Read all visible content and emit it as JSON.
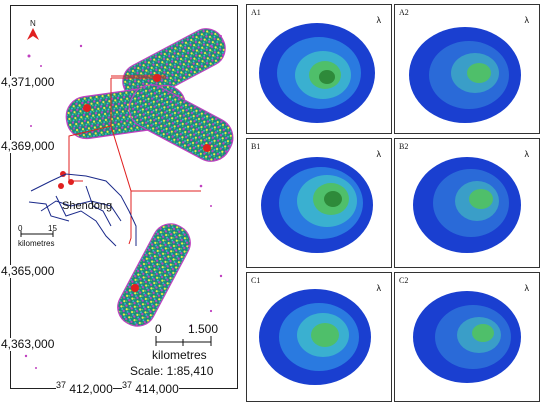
{
  "map": {
    "y_labels": [
      "4,371,000",
      "4,369,000",
      "4,365,000",
      "4,363,000"
    ],
    "x_labels": [
      {
        "prefix": "37",
        "value": "412,000"
      },
      {
        "prefix": "37",
        "value": "414,000"
      }
    ],
    "town": "Shendong",
    "inset_scale": {
      "start": "0",
      "end": "15",
      "unit": "kilometres"
    },
    "scale": {
      "start": "0",
      "end": "1.500",
      "unit": "kilometres",
      "ratio": "Scale: 1:85,410"
    },
    "colors": {
      "red_marker": "#e02020",
      "frame": "#222222",
      "road": "#1b2a8a"
    }
  },
  "panels": [
    {
      "label": "A1",
      "north": "λ"
    },
    {
      "label": "A2",
      "north": "λ"
    },
    {
      "label": "B1",
      "north": "λ"
    },
    {
      "label": "B2",
      "north": "λ"
    },
    {
      "label": "C1",
      "north": "λ"
    },
    {
      "label": "C2",
      "north": "λ"
    }
  ]
}
